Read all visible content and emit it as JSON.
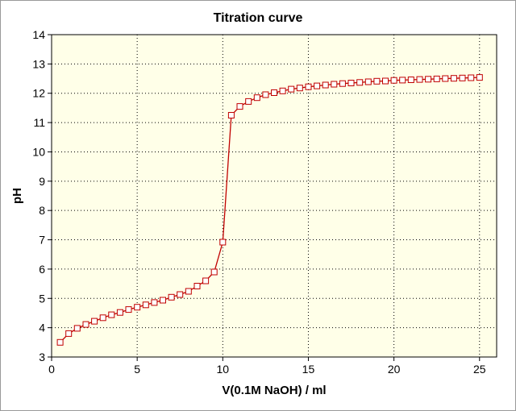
{
  "chart_data": {
    "type": "line",
    "title": "Titration curve",
    "xlabel": "V(0.1M NaOH) / ml",
    "ylabel": "pH",
    "xlim": [
      0,
      26
    ],
    "ylim": [
      3,
      14
    ],
    "xticks": [
      0,
      5,
      10,
      15,
      20,
      25
    ],
    "yticks": [
      3,
      4,
      5,
      6,
      7,
      8,
      9,
      10,
      11,
      12,
      13,
      14
    ],
    "grid": true,
    "marker": "square",
    "colors": {
      "series": "#c00000",
      "plot_bg": "#ffffe8"
    },
    "series": [
      {
        "x": [
          0.5,
          1.0,
          1.5,
          2.0,
          2.5,
          3.0,
          3.5,
          4.0,
          4.5,
          5.0,
          5.5,
          6.0,
          6.5,
          7.0,
          7.5,
          8.0,
          8.5,
          9.0,
          9.5,
          10.0,
          10.5,
          11.0,
          11.5,
          12.0,
          12.5,
          13.0,
          13.5,
          14.0,
          14.5,
          15.0,
          15.5,
          16.0,
          16.5,
          17.0,
          17.5,
          18.0,
          18.5,
          19.0,
          19.5,
          20.0,
          20.5,
          21.0,
          21.5,
          22.0,
          22.5,
          23.0,
          23.5,
          24.0,
          24.5,
          25.0
        ],
        "y": [
          3.5,
          3.8,
          3.98,
          4.11,
          4.22,
          4.34,
          4.44,
          4.52,
          4.62,
          4.7,
          4.78,
          4.86,
          4.94,
          5.04,
          5.13,
          5.24,
          5.42,
          5.6,
          5.9,
          6.92,
          11.25,
          11.55,
          11.72,
          11.85,
          11.95,
          12.02,
          12.08,
          12.14,
          12.18,
          12.22,
          12.25,
          12.28,
          12.31,
          12.33,
          12.35,
          12.37,
          12.39,
          12.41,
          12.42,
          12.44,
          12.45,
          12.46,
          12.47,
          12.48,
          12.49,
          12.5,
          12.51,
          12.52,
          12.53,
          12.54
        ]
      }
    ]
  }
}
